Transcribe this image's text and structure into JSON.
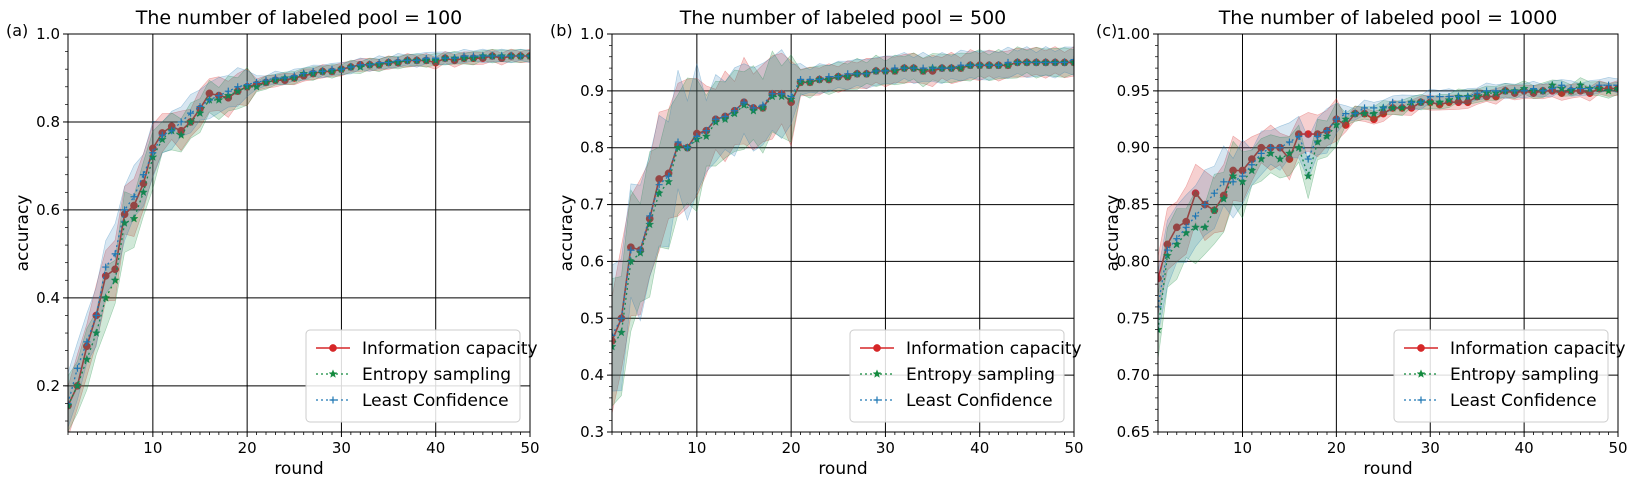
{
  "colors": {
    "information_capacity": "#d62728",
    "entropy_sampling": "#138a3d",
    "least_confidence": "#1f77b4"
  },
  "chart_data": [
    {
      "type": "line",
      "panel_label": "(a)",
      "title": "The number of labeled pool = 100",
      "xlabel": "round",
      "ylabel": "accuracy",
      "xlim": [
        1,
        50
      ],
      "ylim": [
        0.095,
        1.0
      ],
      "xticks": [
        "10",
        "20",
        "30",
        "40",
        "50"
      ],
      "yticks": [
        "0.2",
        "0.4",
        "0.6",
        "0.8",
        "1.0"
      ],
      "grid": true,
      "legend_position": "lower-right",
      "x": [
        1,
        2,
        3,
        4,
        5,
        6,
        7,
        8,
        9,
        10,
        11,
        12,
        13,
        14,
        15,
        16,
        17,
        18,
        19,
        20,
        21,
        22,
        23,
        24,
        25,
        26,
        27,
        28,
        29,
        30,
        31,
        32,
        33,
        34,
        35,
        36,
        37,
        38,
        39,
        40,
        41,
        42,
        43,
        44,
        45,
        46,
        47,
        48,
        49,
        50
      ],
      "series": [
        {
          "name": "Information capacity",
          "values": [
            0.155,
            0.2,
            0.29,
            0.36,
            0.45,
            0.465,
            0.59,
            0.61,
            0.66,
            0.74,
            0.775,
            0.79,
            0.78,
            0.8,
            0.83,
            0.865,
            0.86,
            0.855,
            0.87,
            0.88,
            0.885,
            0.89,
            0.895,
            0.895,
            0.9,
            0.905,
            0.91,
            0.915,
            0.915,
            0.92,
            0.925,
            0.93,
            0.93,
            0.93,
            0.935,
            0.935,
            0.94,
            0.94,
            0.94,
            0.935,
            0.945,
            0.94,
            0.945,
            0.945,
            0.945,
            0.95,
            0.945,
            0.95,
            0.95,
            0.95
          ]
        },
        {
          "name": "Entropy sampling",
          "values": [
            0.155,
            0.2,
            0.26,
            0.32,
            0.4,
            0.44,
            0.57,
            0.58,
            0.64,
            0.72,
            0.76,
            0.78,
            0.77,
            0.8,
            0.82,
            0.85,
            0.85,
            0.86,
            0.87,
            0.88,
            0.88,
            0.89,
            0.895,
            0.9,
            0.9,
            0.91,
            0.91,
            0.915,
            0.915,
            0.92,
            0.925,
            0.925,
            0.93,
            0.93,
            0.935,
            0.935,
            0.94,
            0.94,
            0.94,
            0.94,
            0.945,
            0.945,
            0.945,
            0.945,
            0.95,
            0.95,
            0.95,
            0.95,
            0.95,
            0.95
          ]
        },
        {
          "name": "Least Confidence",
          "values": [
            0.16,
            0.24,
            0.3,
            0.36,
            0.47,
            0.5,
            0.6,
            0.63,
            0.68,
            0.73,
            0.77,
            0.78,
            0.8,
            0.82,
            0.835,
            0.85,
            0.86,
            0.87,
            0.88,
            0.885,
            0.89,
            0.895,
            0.9,
            0.9,
            0.905,
            0.91,
            0.915,
            0.915,
            0.92,
            0.92,
            0.925,
            0.93,
            0.93,
            0.935,
            0.935,
            0.94,
            0.94,
            0.94,
            0.945,
            0.945,
            0.945,
            0.945,
            0.95,
            0.95,
            0.95,
            0.95,
            0.95,
            0.95,
            0.95,
            0.95
          ]
        }
      ]
    },
    {
      "type": "line",
      "panel_label": "(b)",
      "title": "The number of labeled pool = 500",
      "xlabel": "round",
      "ylabel": "accuracy",
      "xlim": [
        1,
        50
      ],
      "ylim": [
        0.3,
        1.0
      ],
      "xticks": [
        "10",
        "20",
        "30",
        "40",
        "50"
      ],
      "yticks": [
        "0.3",
        "0.4",
        "0.5",
        "0.6",
        "0.7",
        "0.8",
        "0.9",
        "1.0"
      ],
      "grid": true,
      "legend_position": "lower-right",
      "x": [
        1,
        2,
        3,
        4,
        5,
        6,
        7,
        8,
        9,
        10,
        11,
        12,
        13,
        14,
        15,
        16,
        17,
        18,
        19,
        20,
        21,
        22,
        23,
        24,
        25,
        26,
        27,
        28,
        29,
        30,
        31,
        32,
        33,
        34,
        35,
        36,
        37,
        38,
        39,
        40,
        41,
        42,
        43,
        44,
        45,
        46,
        47,
        48,
        49,
        50
      ],
      "series": [
        {
          "name": "Information capacity",
          "values": [
            0.46,
            0.5,
            0.625,
            0.62,
            0.675,
            0.745,
            0.755,
            0.805,
            0.8,
            0.825,
            0.83,
            0.85,
            0.855,
            0.865,
            0.88,
            0.87,
            0.87,
            0.895,
            0.895,
            0.88,
            0.915,
            0.915,
            0.92,
            0.92,
            0.925,
            0.925,
            0.93,
            0.93,
            0.935,
            0.935,
            0.935,
            0.94,
            0.94,
            0.935,
            0.935,
            0.94,
            0.94,
            0.94,
            0.945,
            0.945,
            0.945,
            0.945,
            0.945,
            0.95,
            0.95,
            0.95,
            0.95,
            0.95,
            0.95,
            0.95
          ]
        },
        {
          "name": "Entropy sampling",
          "values": [
            0.45,
            0.475,
            0.6,
            0.615,
            0.665,
            0.72,
            0.74,
            0.8,
            0.8,
            0.815,
            0.82,
            0.845,
            0.85,
            0.86,
            0.875,
            0.865,
            0.87,
            0.89,
            0.89,
            0.885,
            0.915,
            0.915,
            0.92,
            0.92,
            0.925,
            0.925,
            0.93,
            0.93,
            0.935,
            0.935,
            0.935,
            0.94,
            0.94,
            0.935,
            0.94,
            0.94,
            0.94,
            0.94,
            0.945,
            0.945,
            0.945,
            0.945,
            0.945,
            0.95,
            0.95,
            0.95,
            0.95,
            0.95,
            0.95,
            0.95
          ]
        },
        {
          "name": "Least Confidence",
          "values": [
            0.47,
            0.5,
            0.62,
            0.62,
            0.68,
            0.735,
            0.75,
            0.81,
            0.8,
            0.82,
            0.83,
            0.85,
            0.855,
            0.865,
            0.88,
            0.87,
            0.875,
            0.895,
            0.895,
            0.89,
            0.92,
            0.92,
            0.92,
            0.925,
            0.925,
            0.93,
            0.93,
            0.93,
            0.935,
            0.935,
            0.94,
            0.94,
            0.94,
            0.94,
            0.94,
            0.94,
            0.94,
            0.945,
            0.945,
            0.945,
            0.945,
            0.945,
            0.95,
            0.95,
            0.95,
            0.95,
            0.95,
            0.95,
            0.95,
            0.955
          ]
        }
      ]
    },
    {
      "type": "line",
      "panel_label": "(c)",
      "title": "The number of labeled pool = 1000",
      "xlabel": "round",
      "ylabel": "accuracy",
      "xlim": [
        1,
        50
      ],
      "ylim": [
        0.65,
        1.0
      ],
      "xticks": [
        "10",
        "20",
        "30",
        "40",
        "50"
      ],
      "yticks": [
        "0.65",
        "0.70",
        "0.75",
        "0.80",
        "0.85",
        "0.90",
        "0.95",
        "1.00"
      ],
      "grid": true,
      "legend_position": "lower-right",
      "x": [
        1,
        2,
        3,
        4,
        5,
        6,
        7,
        8,
        9,
        10,
        11,
        12,
        13,
        14,
        15,
        16,
        17,
        18,
        19,
        20,
        21,
        22,
        23,
        24,
        25,
        26,
        27,
        28,
        29,
        30,
        31,
        32,
        33,
        34,
        35,
        36,
        37,
        38,
        39,
        40,
        41,
        42,
        43,
        44,
        45,
        46,
        47,
        48,
        49,
        50
      ],
      "series": [
        {
          "name": "Information capacity",
          "values": [
            0.785,
            0.815,
            0.83,
            0.835,
            0.86,
            0.85,
            0.845,
            0.858,
            0.88,
            0.88,
            0.89,
            0.9,
            0.9,
            0.9,
            0.89,
            0.912,
            0.912,
            0.912,
            0.915,
            0.925,
            0.92,
            0.93,
            0.93,
            0.925,
            0.93,
            0.935,
            0.935,
            0.935,
            0.94,
            0.94,
            0.938,
            0.94,
            0.94,
            0.94,
            0.945,
            0.945,
            0.945,
            0.95,
            0.948,
            0.95,
            0.948,
            0.95,
            0.95,
            0.948,
            0.95,
            0.95,
            0.948,
            0.952,
            0.952,
            0.952
          ]
        },
        {
          "name": "Entropy sampling",
          "values": [
            0.74,
            0.805,
            0.815,
            0.825,
            0.83,
            0.83,
            0.845,
            0.855,
            0.875,
            0.87,
            0.88,
            0.89,
            0.895,
            0.89,
            0.895,
            0.9,
            0.875,
            0.905,
            0.91,
            0.92,
            0.925,
            0.93,
            0.93,
            0.93,
            0.935,
            0.935,
            0.935,
            0.94,
            0.94,
            0.94,
            0.94,
            0.942,
            0.945,
            0.945,
            0.945,
            0.948,
            0.948,
            0.95,
            0.95,
            0.952,
            0.95,
            0.95,
            0.955,
            0.952,
            0.95,
            0.955,
            0.952,
            0.952,
            0.95,
            0.952
          ]
        },
        {
          "name": "Least Confidence",
          "values": [
            0.76,
            0.81,
            0.82,
            0.83,
            0.84,
            0.85,
            0.86,
            0.87,
            0.87,
            0.875,
            0.885,
            0.895,
            0.9,
            0.9,
            0.905,
            0.91,
            0.89,
            0.91,
            0.915,
            0.925,
            0.93,
            0.93,
            0.935,
            0.935,
            0.935,
            0.94,
            0.94,
            0.94,
            0.94,
            0.945,
            0.945,
            0.945,
            0.945,
            0.945,
            0.948,
            0.95,
            0.95,
            0.95,
            0.95,
            0.95,
            0.952,
            0.95,
            0.952,
            0.955,
            0.952,
            0.952,
            0.952,
            0.955,
            0.955,
            0.955
          ]
        }
      ]
    }
  ]
}
